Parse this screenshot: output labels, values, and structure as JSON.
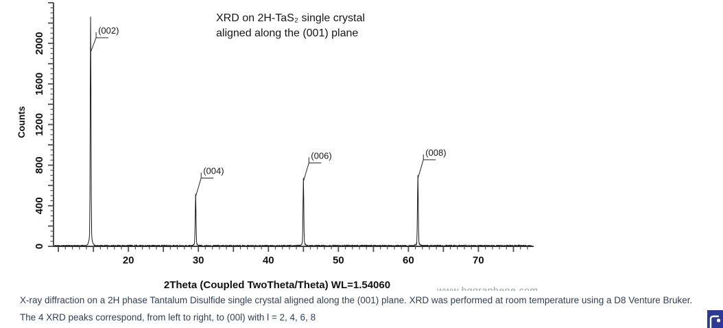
{
  "caption": {
    "line1": "X-ray diffraction on a 2H phase Tantalum Disulfide single crystal aligned along the (001) plane. XRD was performed at room temperature using a D8 Venture Bruker.",
    "line2": "The 4 XRD peaks correspond, from left to right, to (00l) with l = 2, 4, 6, 8"
  },
  "colors": {
    "caption_text": "#343d4e",
    "axis": "#000000",
    "ticks": "#4d4d4d",
    "trace": "#161616",
    "callout": "#222222",
    "watermark": "#9aa0a8",
    "overlay_icon_bg": "#2c3a96",
    "overlay_icon_fg": "#ffffff"
  },
  "chart_data": {
    "type": "line",
    "title_lines": [
      "XRD on 2H-TaS₂ single crystal",
      "aligned along the (001) plane"
    ],
    "xlabel": "2Theta (Coupled TwoTheta/Theta) WL=1.54060",
    "ylabel": "Counts",
    "xlim": [
      9.3,
      77.6
    ],
    "ylim": [
      0,
      2400
    ],
    "x_tick_step_minor": 1,
    "x_tick_step_medium": 5,
    "x_tick_labels": [
      20,
      30,
      40,
      50,
      60,
      70
    ],
    "y_tick_step_minor": 50,
    "y_tick_step_medium": 200,
    "y_tick_labels": [
      0,
      400,
      800,
      1200,
      1600,
      2000
    ],
    "grid": false,
    "legend": false,
    "baseline_noise_counts": 10,
    "peaks": [
      {
        "hkl": "(002)",
        "two_theta": 14.6,
        "counts": 2170
      },
      {
        "hkl": "(004)",
        "two_theta": 29.6,
        "counts": 490
      },
      {
        "hkl": "(006)",
        "two_theta": 45.0,
        "counts": 640
      },
      {
        "hkl": "(008)",
        "two_theta": 61.35,
        "counts": 670
      }
    ],
    "watermark": "www.hqgraphene.com"
  }
}
